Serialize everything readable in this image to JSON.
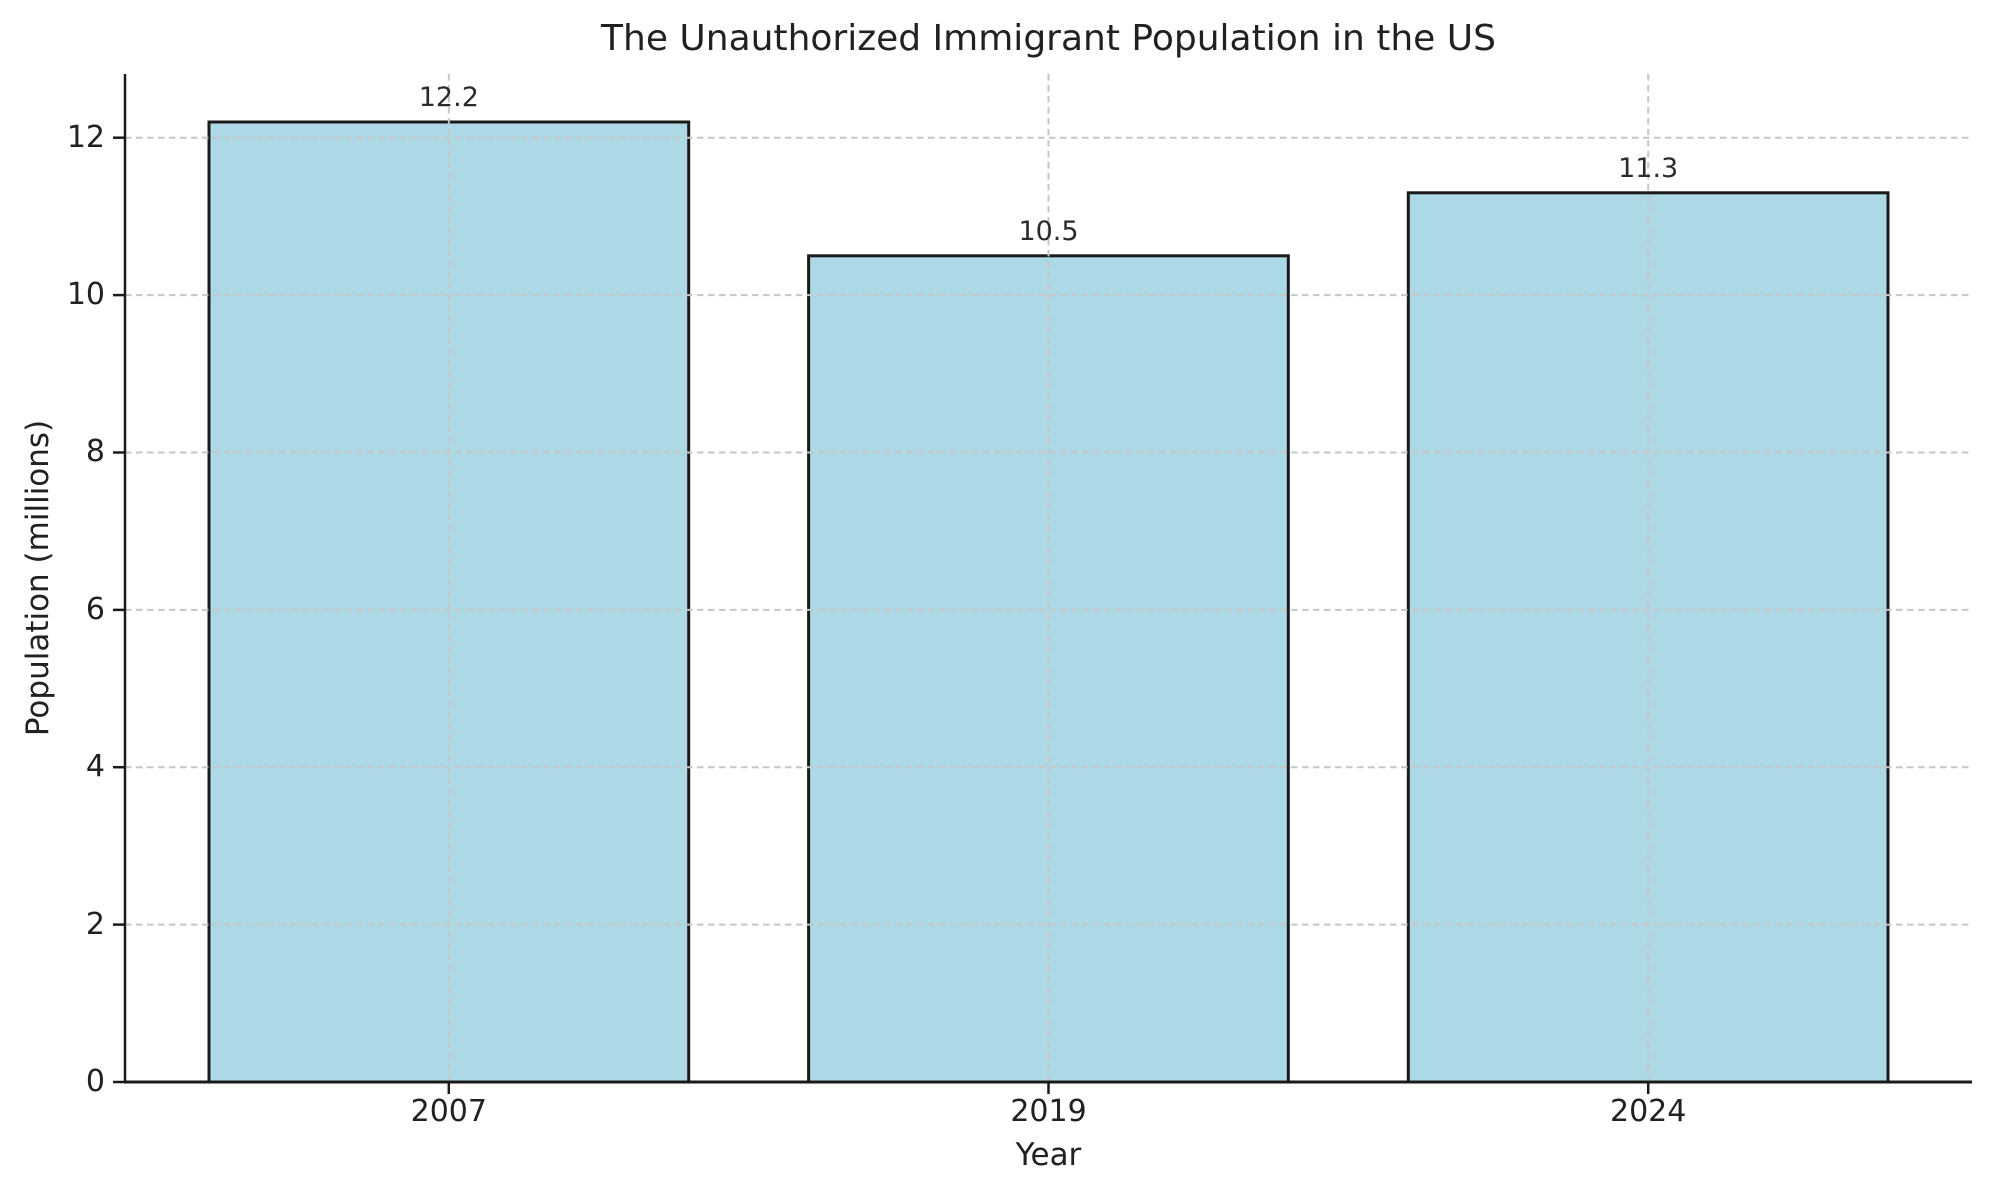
{
  "chart_data": {
    "type": "bar",
    "title": "The Unauthorized Immigrant Population in the US",
    "xlabel": "Year",
    "ylabel": "Population (millions)",
    "categories": [
      "2007",
      "2019",
      "2024"
    ],
    "values": [
      12.2,
      10.5,
      11.3
    ],
    "bar_value_labels": [
      "12.2",
      "10.5",
      "11.3"
    ],
    "yticks": [
      "0",
      "2",
      "4",
      "6",
      "8",
      "10",
      "12"
    ],
    "ytick_values": [
      0,
      2,
      4,
      6,
      8,
      10,
      12
    ],
    "ylim": [
      0,
      12.81
    ],
    "bar_color": "#add8e6",
    "bar_edge_color": "#1a1a1a",
    "grid": true,
    "grid_line_style": "dashed",
    "grid_color": "#c6c6c6",
    "axis_color": "#1a1a1a",
    "text_color": "#212121",
    "background_color": "#ffffff",
    "legend": "none"
  }
}
